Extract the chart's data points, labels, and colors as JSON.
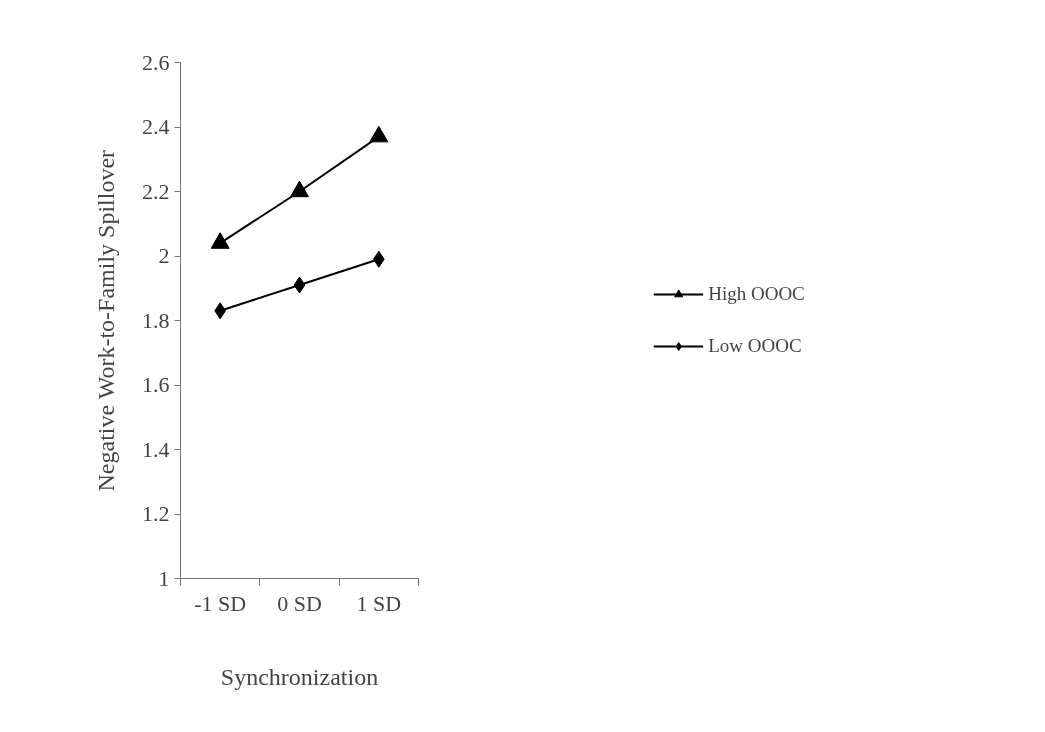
{
  "chart_data": {
    "type": "line",
    "xlabel": "Synchronization",
    "ylabel": "Negative Work-to-Family Spillover",
    "categories": [
      "-1 SD",
      "0 SD",
      "1 SD"
    ],
    "series": [
      {
        "name": "High OOOC",
        "color": "#000000",
        "marker": "triangle",
        "values": [
          2.04,
          2.2,
          2.37
        ]
      },
      {
        "name": "Low OOOC",
        "color": "#000000",
        "marker": "diamond",
        "values": [
          1.83,
          1.91,
          1.99
        ]
      }
    ],
    "ylim": [
      1,
      2.6
    ],
    "yticks": [
      1,
      1.2,
      1.4,
      1.6,
      1.8,
      2,
      2.2,
      2.4,
      2.6
    ],
    "grid": false,
    "legend": "right",
    "line_style": "solid"
  }
}
